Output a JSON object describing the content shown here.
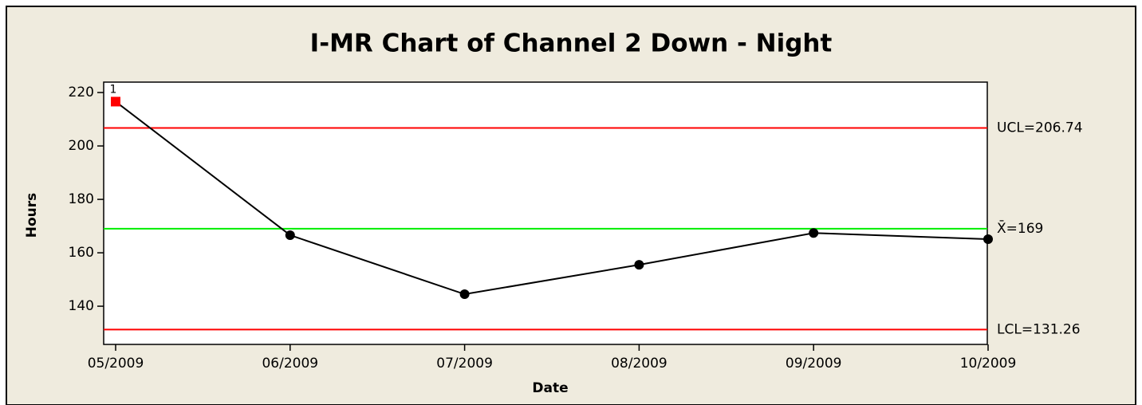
{
  "chart_data": {
    "type": "line",
    "title": "I-MR Chart of Channel 2 Down - Night",
    "x_label": "Date",
    "y_label": "Hours",
    "categories": [
      "05/2009",
      "06/2009",
      "07/2009",
      "08/2009",
      "09/2009",
      "10/2009"
    ],
    "series": [
      {
        "color": "#000000",
        "values": [
          216.6,
          166.6,
          144.5,
          155.5,
          167.4,
          165.1
        ],
        "point_labels": [
          "1",
          null,
          null,
          null,
          null,
          null
        ],
        "flag_color": "#ff0000"
      }
    ],
    "reference_lines": [
      {
        "value": 206.74,
        "label": "UCL=206.74",
        "color": "#ff0000"
      },
      {
        "value": 169,
        "label": "X̄=169",
        "color": "#00ee00"
      },
      {
        "value": 131.26,
        "label": "LCL=131.26",
        "color": "#ff0000"
      }
    ],
    "ylim": [
      125.7,
      223.9
    ],
    "yticks": [
      140,
      160,
      180,
      200,
      220
    ]
  }
}
